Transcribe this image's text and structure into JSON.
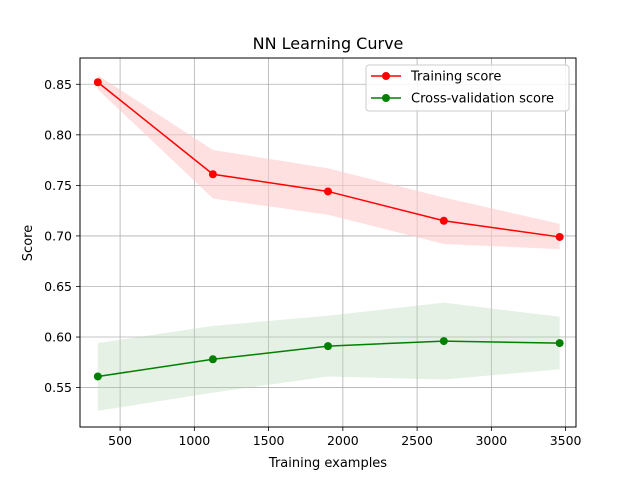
{
  "chart_data": {
    "type": "line",
    "title": "NN Learning Curve",
    "xlabel": "Training examples",
    "ylabel": "Score",
    "xlim": [
      230,
      3570
    ],
    "ylim": [
      0.511,
      0.876
    ],
    "xticks": [
      500,
      1000,
      1500,
      2000,
      2500,
      3000,
      3500
    ],
    "yticks": [
      0.55,
      0.6,
      0.65,
      0.7,
      0.75,
      0.8,
      0.85
    ],
    "xtick_labels": [
      "500",
      "1000",
      "1500",
      "2000",
      "2500",
      "3000",
      "3500"
    ],
    "ytick_labels": [
      "0.55",
      "0.60",
      "0.65",
      "0.70",
      "0.75",
      "0.80",
      "0.85"
    ],
    "grid": true,
    "legend_position": "top-right",
    "x": [
      350,
      1125,
      1900,
      2680,
      3460
    ],
    "series": [
      {
        "name": "Training score",
        "color": "#ff0000",
        "band_color": "#ffcccc",
        "values": [
          0.852,
          0.761,
          0.744,
          0.715,
          0.699
        ],
        "band_low": [
          0.845,
          0.737,
          0.721,
          0.692,
          0.687
        ],
        "band_high": [
          0.859,
          0.785,
          0.767,
          0.738,
          0.712
        ]
      },
      {
        "name": "Cross-validation score",
        "color": "#008000",
        "band_color": "#b2d8b2",
        "values": [
          0.561,
          0.578,
          0.591,
          0.596,
          0.594
        ],
        "band_low": [
          0.527,
          0.545,
          0.561,
          0.558,
          0.568
        ],
        "band_high": [
          0.594,
          0.611,
          0.621,
          0.634,
          0.62
        ]
      }
    ]
  }
}
